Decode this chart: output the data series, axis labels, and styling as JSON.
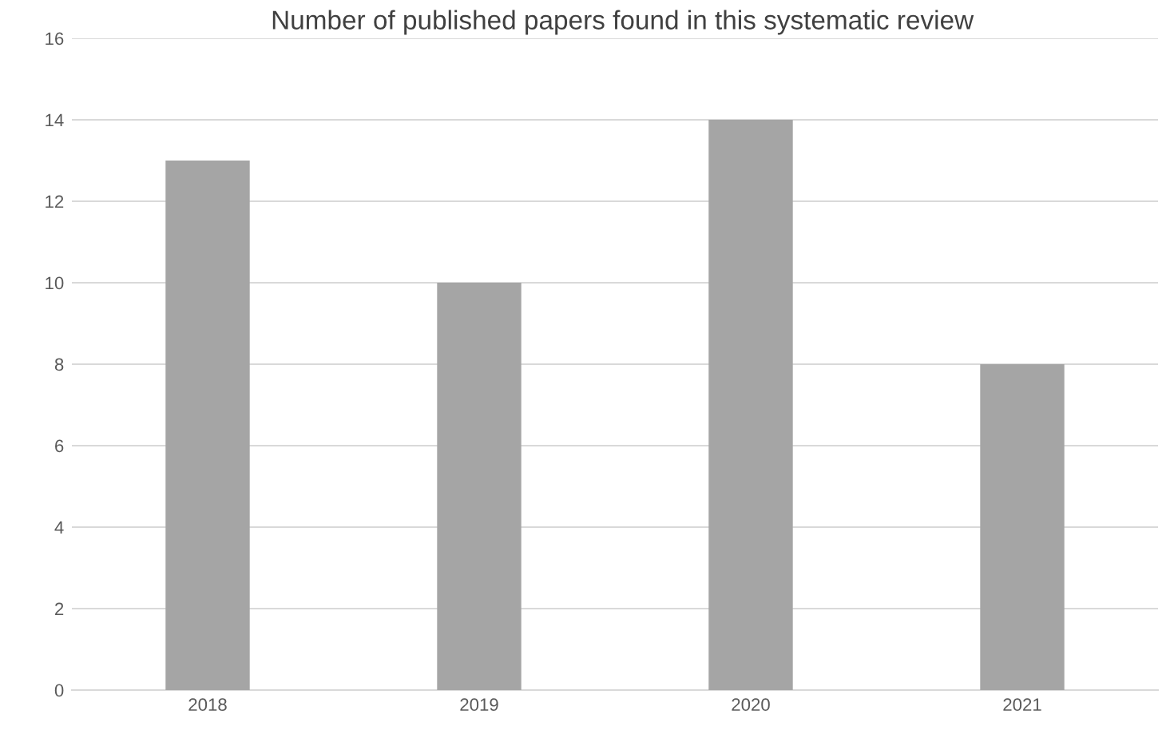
{
  "chart_data": {
    "type": "bar",
    "title": "Number of published papers found in this systematic review",
    "categories": [
      "2018",
      "2019",
      "2020",
      "2021"
    ],
    "values": [
      13,
      10,
      14,
      8
    ],
    "color": "#a5a5a5",
    "ylim": [
      0,
      16
    ],
    "yticks": [
      0,
      2,
      4,
      6,
      8,
      10,
      12,
      14,
      16
    ],
    "grid": "y"
  }
}
